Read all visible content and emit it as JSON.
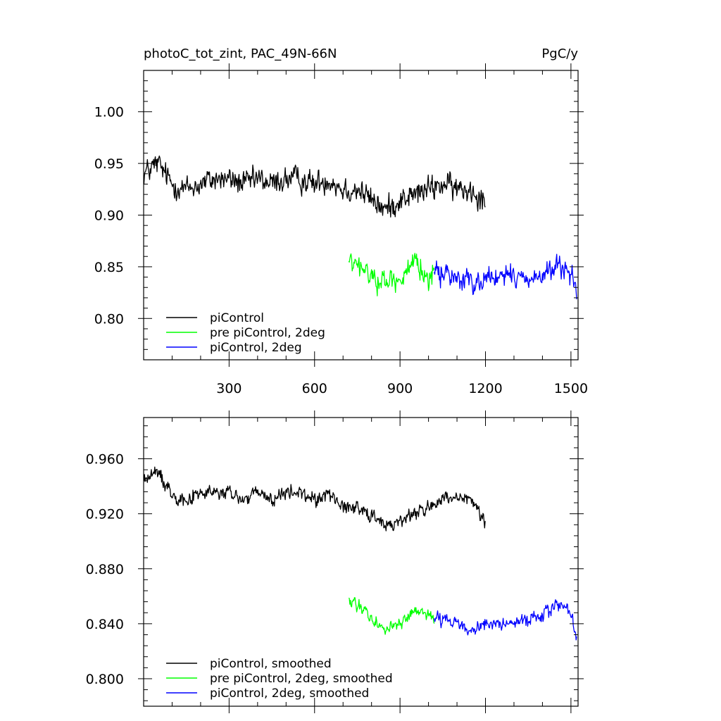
{
  "figure": {
    "title_left": "photoC_tot_zint, PAC_49N-66N",
    "title_right": "PgC/y"
  },
  "chart_data": [
    {
      "id": "top",
      "type": "line",
      "title": "photoC_tot_zint, PAC_49N-66N",
      "units": "PgC/y",
      "xlim": [
        0,
        1525
      ],
      "ylim": [
        0.76,
        1.04
      ],
      "x_ticks": [
        300,
        600,
        900,
        1200,
        1500
      ],
      "x_tick_labels": [
        "300",
        "600",
        "900",
        "1200",
        "1500"
      ],
      "y_ticks": [
        0.8,
        0.85,
        0.9,
        0.95,
        1.0
      ],
      "y_tick_labels": [
        "0.80",
        "0.85",
        "0.90",
        "0.95",
        "1.00"
      ],
      "grid": false,
      "legend_position": "bottom-left",
      "series": [
        {
          "name": "piControl",
          "color": "#000000",
          "x_start": 1,
          "x_end": 1200,
          "anchors": [
            [
              1,
              0.94
            ],
            [
              50,
              0.95
            ],
            [
              100,
              0.93
            ],
            [
              150,
              0.925
            ],
            [
              200,
              0.93
            ],
            [
              250,
              0.935
            ],
            [
              300,
              0.935
            ],
            [
              350,
              0.93
            ],
            [
              400,
              0.935
            ],
            [
              450,
              0.93
            ],
            [
              500,
              0.935
            ],
            [
              550,
              0.935
            ],
            [
              600,
              0.93
            ],
            [
              650,
              0.935
            ],
            [
              700,
              0.925
            ],
            [
              750,
              0.925
            ],
            [
              800,
              0.915
            ],
            [
              850,
              0.905
            ],
            [
              900,
              0.915
            ],
            [
              950,
              0.92
            ],
            [
              1000,
              0.925
            ],
            [
              1050,
              0.93
            ],
            [
              1100,
              0.925
            ],
            [
              1150,
              0.925
            ],
            [
              1200,
              0.915
            ]
          ],
          "noise": 0.02,
          "min_clip": 0.873,
          "max_clip": 1.01
        },
        {
          "name": "pre piControl, 2deg",
          "color": "#00ff00",
          "x_start": 720,
          "x_end": 1020,
          "anchors": [
            [
              720,
              0.855
            ],
            [
              780,
              0.845
            ],
            [
              840,
              0.835
            ],
            [
              900,
              0.84
            ],
            [
              960,
              0.85
            ],
            [
              1020,
              0.84
            ]
          ],
          "noise": 0.018,
          "min_clip": 0.785,
          "max_clip": 0.9
        },
        {
          "name": "piControl, 2deg",
          "color": "#0000ff",
          "x_start": 1020,
          "x_end": 1520,
          "anchors": [
            [
              1020,
              0.845
            ],
            [
              1100,
              0.84
            ],
            [
              1150,
              0.835
            ],
            [
              1200,
              0.84
            ],
            [
              1300,
              0.84
            ],
            [
              1400,
              0.84
            ],
            [
              1450,
              0.85
            ],
            [
              1500,
              0.845
            ],
            [
              1520,
              0.82
            ]
          ],
          "noise": 0.018,
          "min_clip": 0.77,
          "max_clip": 0.905
        }
      ]
    },
    {
      "id": "bottom",
      "type": "line",
      "xlim": [
        0,
        1525
      ],
      "ylim": [
        0.78,
        0.99
      ],
      "x_ticks": [
        300,
        600,
        900,
        1200,
        1500
      ],
      "x_tick_labels": [],
      "y_ticks": [
        0.8,
        0.84,
        0.88,
        0.92,
        0.96
      ],
      "y_tick_labels": [
        "0.800",
        "0.840",
        "0.880",
        "0.920",
        "0.960"
      ],
      "grid": false,
      "legend_position": "bottom-left",
      "series": [
        {
          "name": "piControl, smoothed",
          "color": "#000000",
          "x_start": 1,
          "x_end": 1200,
          "anchors": [
            [
              1,
              0.945
            ],
            [
              50,
              0.95
            ],
            [
              100,
              0.935
            ],
            [
              150,
              0.93
            ],
            [
              200,
              0.935
            ],
            [
              250,
              0.935
            ],
            [
              300,
              0.935
            ],
            [
              350,
              0.93
            ],
            [
              400,
              0.935
            ],
            [
              450,
              0.93
            ],
            [
              500,
              0.935
            ],
            [
              550,
              0.935
            ],
            [
              600,
              0.93
            ],
            [
              650,
              0.935
            ],
            [
              700,
              0.925
            ],
            [
              750,
              0.925
            ],
            [
              800,
              0.92
            ],
            [
              850,
              0.91
            ],
            [
              900,
              0.915
            ],
            [
              950,
              0.92
            ],
            [
              1000,
              0.925
            ],
            [
              1050,
              0.93
            ],
            [
              1100,
              0.93
            ],
            [
              1150,
              0.93
            ],
            [
              1200,
              0.915
            ]
          ],
          "noise": 0.009,
          "min_clip": 0.897,
          "max_clip": 0.977
        },
        {
          "name": "pre piControl, 2deg, smoothed",
          "color": "#00ff00",
          "x_start": 720,
          "x_end": 1020,
          "anchors": [
            [
              720,
              0.855
            ],
            [
              780,
              0.85
            ],
            [
              840,
              0.835
            ],
            [
              900,
              0.84
            ],
            [
              960,
              0.85
            ],
            [
              1020,
              0.845
            ]
          ],
          "noise": 0.008,
          "min_clip": 0.808,
          "max_clip": 0.874
        },
        {
          "name": "piControl, 2deg, smoothed",
          "color": "#0000ff",
          "x_start": 1020,
          "x_end": 1520,
          "anchors": [
            [
              1020,
              0.845
            ],
            [
              1100,
              0.84
            ],
            [
              1150,
              0.835
            ],
            [
              1200,
              0.84
            ],
            [
              1300,
              0.84
            ],
            [
              1400,
              0.845
            ],
            [
              1450,
              0.855
            ],
            [
              1500,
              0.85
            ],
            [
              1520,
              0.83
            ]
          ],
          "noise": 0.008,
          "min_clip": 0.807,
          "max_clip": 0.87
        }
      ]
    }
  ]
}
